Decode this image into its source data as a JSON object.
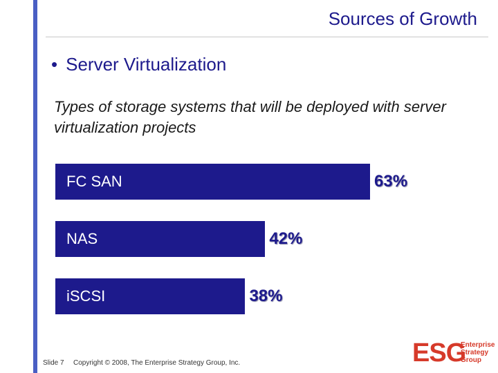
{
  "slide": {
    "title": "Sources of Growth",
    "bullet_marker": "•",
    "bullet": "Server Virtualization",
    "subtitle": "Types of storage systems that will be deployed with server virtualization projects"
  },
  "chart_data": {
    "type": "bar",
    "orientation": "horizontal",
    "title": "Types of storage systems that will be deployed with server virtualization projects",
    "categories": [
      "FC SAN",
      "NAS",
      "iSCSI"
    ],
    "values": [
      63,
      42,
      38
    ],
    "value_labels": [
      "63%",
      "42%",
      "38%"
    ],
    "xlabel": "",
    "ylabel": "",
    "xlim": [
      0,
      100
    ],
    "bar_color": "#1d1a8c"
  },
  "footer": {
    "slide_number": "Slide 7",
    "copyright": "Copyright © 2008, The Enterprise Strategy Group, Inc."
  },
  "logo": {
    "mark": "ESG",
    "name_lines": [
      "Enterprise",
      "Strategy",
      "Group"
    ]
  },
  "colors": {
    "accent": "#1d1a8c",
    "stripe": "#4a5fc4",
    "brand": "#d63a2a"
  }
}
